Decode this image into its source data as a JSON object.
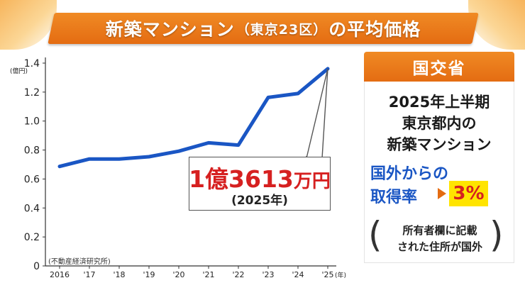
{
  "header": {
    "title_main": "新築マンション",
    "title_sub": "（東京23区）",
    "title_tail": "の平均価格"
  },
  "chart_data": {
    "type": "line",
    "categories": [
      "2016",
      "'17",
      "'18",
      "'19",
      "'20",
      "'21",
      "'22",
      "'23",
      "'24",
      "'25"
    ],
    "x_unit": "(年)",
    "y_unit": "(億円)",
    "ylim": [
      0,
      1.4
    ],
    "yticks": [
      "0",
      "0.2",
      "0.4",
      "0.6",
      "0.8",
      "1.0",
      "1.2",
      "1.4"
    ],
    "series": [
      {
        "values": [
          0.687,
          0.738,
          0.738,
          0.754,
          0.792,
          0.85,
          0.834,
          1.163,
          1.19,
          1.3613
        ]
      }
    ],
    "line_color": "#1a56c4",
    "grid": false,
    "source": "(不動産経済研究所)",
    "annotation": {
      "value_number": "1億3613",
      "value_unit": "万円",
      "year": "(2025年)"
    }
  },
  "panel": {
    "header": "国交省",
    "line1": "2025年上半期",
    "line2": "東京都内の",
    "line3": "新築マンション",
    "highlight1": "国外からの",
    "highlight2": "取得率",
    "percent": "3%",
    "note1": "所有者欄に記載",
    "note2": "された住所が国外"
  },
  "colors": {
    "accent": "#e46c12",
    "line": "#1a56c4",
    "highlight_text": "#d62020",
    "highlight_bg": "#ffe400"
  }
}
